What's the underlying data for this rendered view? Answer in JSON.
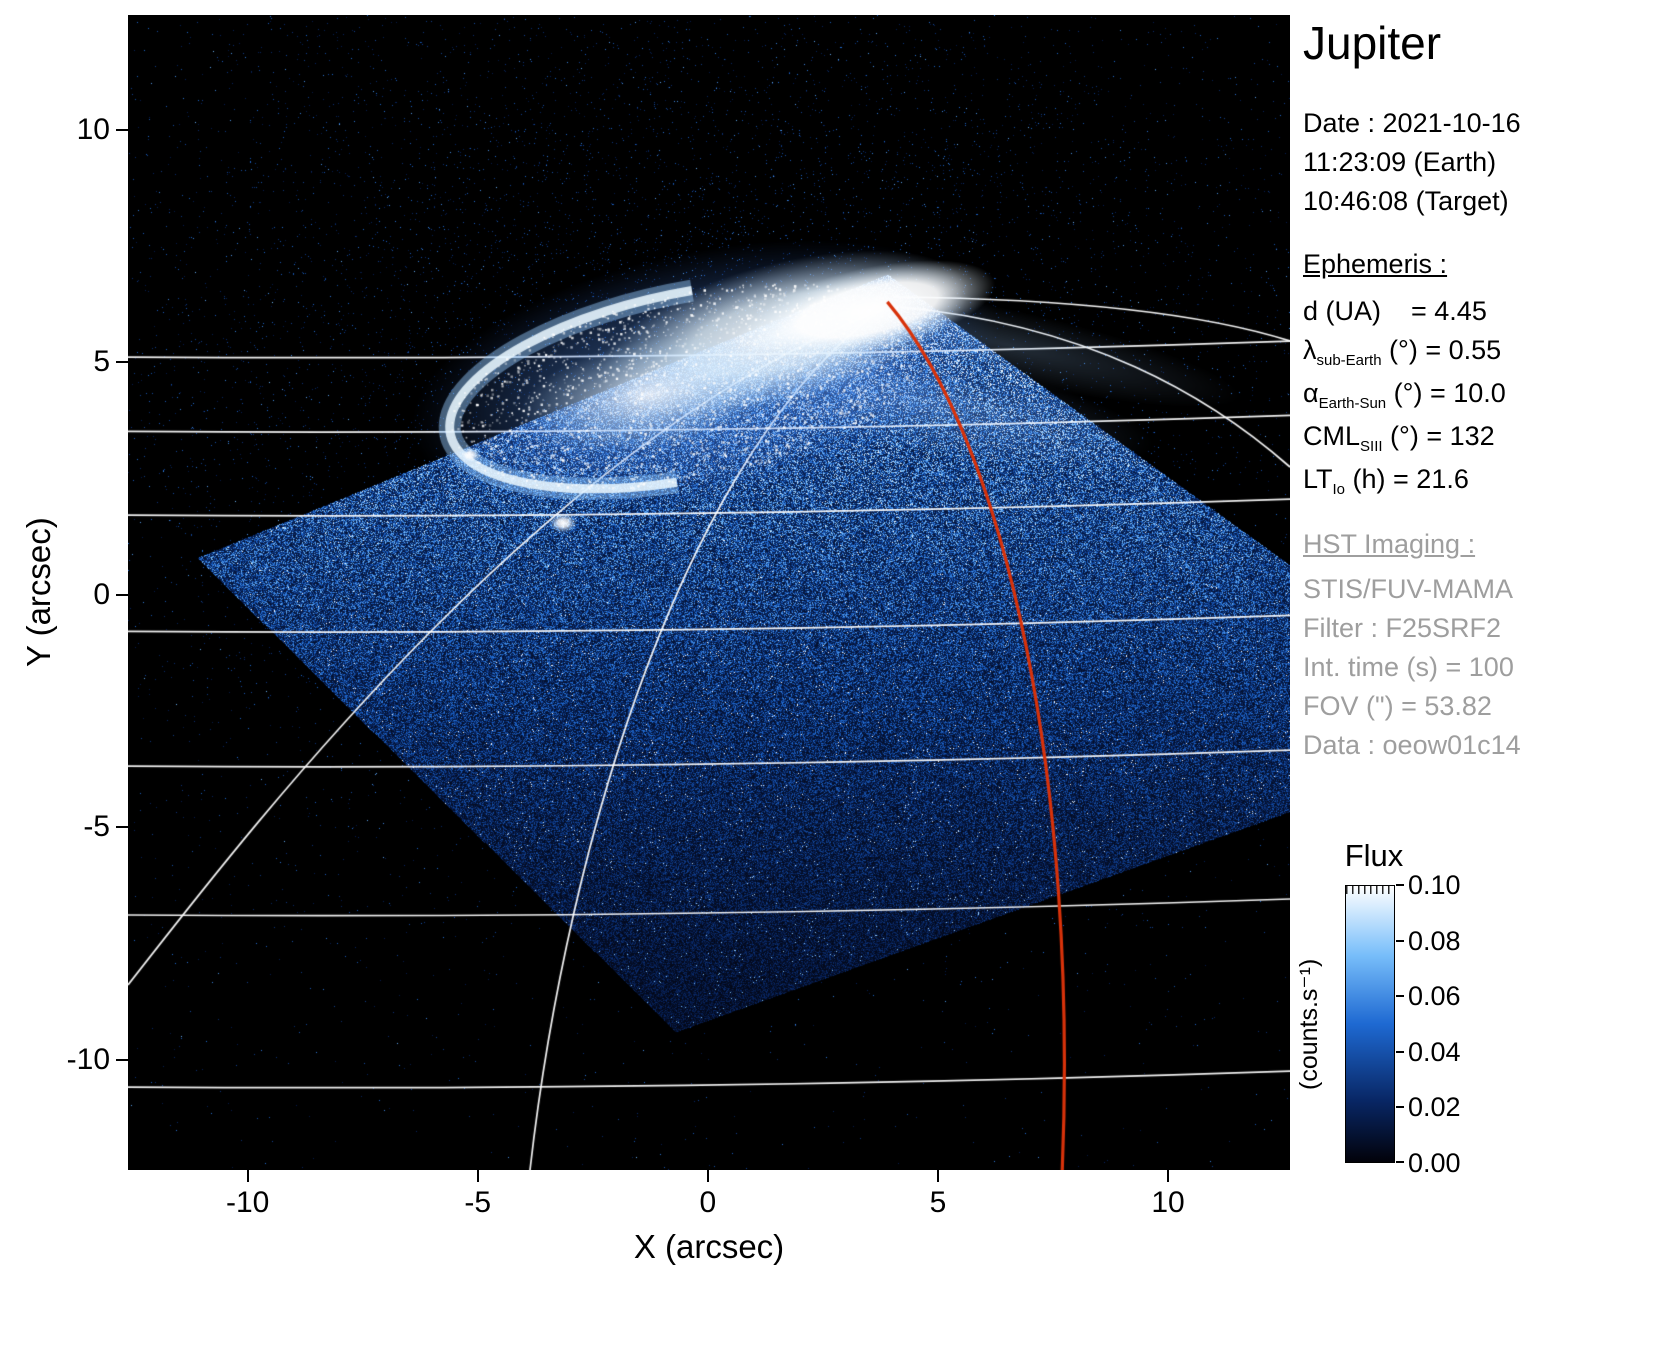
{
  "panel": {
    "title": "Jupiter",
    "date_line": "Date : 2021-10-16",
    "earth_time": "11:23:09 (Earth)",
    "target_time": "10:46:08 (Target)",
    "ephemeris": {
      "heading": "Ephemeris :",
      "rows": [
        {
          "main": "d (UA)",
          "sub": "",
          "rest": "    = 4.45"
        },
        {
          "main": "λ",
          "sub": "sub-Earth",
          "rest": " (°) = 0.55"
        },
        {
          "main": "α",
          "sub": "Earth-Sun",
          "rest": " (°) = 10.0"
        },
        {
          "main": "CML",
          "sub": "SIII",
          "rest": " (°) = 132"
        },
        {
          "main": "LT",
          "sub": "Io",
          "rest": " (h) = 21.6"
        }
      ]
    },
    "hst": {
      "heading": "HST Imaging :",
      "rows": [
        "STIS/FUV-MAMA",
        "Filter : F25SRF2",
        "Int. time (s) = 100",
        "FOV (\") = 53.82",
        "Data : oeow01c14"
      ]
    }
  },
  "colorbar": {
    "title": "Flux",
    "unit": "(counts.s⁻¹)",
    "tick_labels": [
      "0.10",
      "0.08",
      "0.06",
      "0.04",
      "0.02",
      "0.00"
    ]
  },
  "chart_data": {
    "type": "heatmap",
    "title": "Jupiter",
    "xlabel": "X (arcsec)",
    "ylabel": "Y (arcsec)",
    "xlim": [
      -12.6,
      12.65
    ],
    "ylim": [
      -12.37,
      12.47
    ],
    "xticks": [
      -10,
      -5,
      0,
      5,
      10
    ],
    "yticks": [
      10,
      5,
      0,
      -5,
      -10
    ],
    "background_color": "#000000",
    "colorbar": {
      "label": "Flux",
      "unit": "(counts.s⁻¹)",
      "range": [
        0.0,
        0.1
      ],
      "ticks": [
        0.0,
        0.02,
        0.04,
        0.06,
        0.08,
        0.1
      ],
      "colormap": [
        [
          0,
          "#02020a"
        ],
        [
          0.22,
          "#082664"
        ],
        [
          0.5,
          "#1e69d2"
        ],
        [
          0.75,
          "#78befa"
        ],
        [
          1,
          "#ffffff"
        ]
      ]
    },
    "overlays": {
      "graticule_color": "#ffffff",
      "meridian_line_color": "#d8320a",
      "lat_lines_y_arcsec": [
        5.2,
        3.6,
        1.8,
        -0.7,
        -3.6,
        -6.8,
        -10.5
      ],
      "fov_diamond_corners_arcsec": [
        [
          3.9,
          6.9
        ],
        [
          17.6,
          -2.9
        ],
        [
          -0.7,
          -9.4
        ],
        [
          -11.1,
          0.8
        ]
      ],
      "aurora_oval_center_arcsec": [
        -0.4,
        4.5
      ],
      "aurora_oval_radii_arcsec": [
        5.3,
        2.0
      ],
      "red_meridian_endpoints_arcsec": [
        [
          3.9,
          6.3
        ],
        [
          7.7,
          -12.4
        ]
      ]
    }
  }
}
